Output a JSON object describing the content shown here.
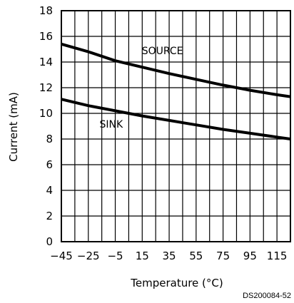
{
  "chart_data": {
    "type": "line",
    "xlabel": "Temperature (°C)",
    "ylabel": "Current (mA)",
    "xlim": [
      -45,
      125
    ],
    "ylim": [
      0,
      18
    ],
    "x_ticks": [
      "-45",
      "-25",
      "-5",
      "15",
      "35",
      "55",
      "75",
      "95",
      "115"
    ],
    "y_ticks": [
      "0",
      "2",
      "4",
      "6",
      "8",
      "10",
      "12",
      "14",
      "16",
      "18"
    ],
    "grid": true,
    "series": [
      {
        "name": "SOURCE",
        "x": [
          -45,
          -25,
          -5,
          15,
          35,
          55,
          75,
          95,
          115,
          125
        ],
        "y": [
          15.4,
          14.8,
          14.1,
          13.6,
          13.1,
          12.65,
          12.2,
          11.8,
          11.45,
          11.3
        ]
      },
      {
        "name": "SINK",
        "x": [
          -45,
          -25,
          -5,
          15,
          35,
          55,
          75,
          95,
          115,
          125
        ],
        "y": [
          11.1,
          10.6,
          10.2,
          9.8,
          9.45,
          9.1,
          8.75,
          8.45,
          8.15,
          8.0
        ]
      }
    ]
  },
  "figure_code": "DS200084-52"
}
